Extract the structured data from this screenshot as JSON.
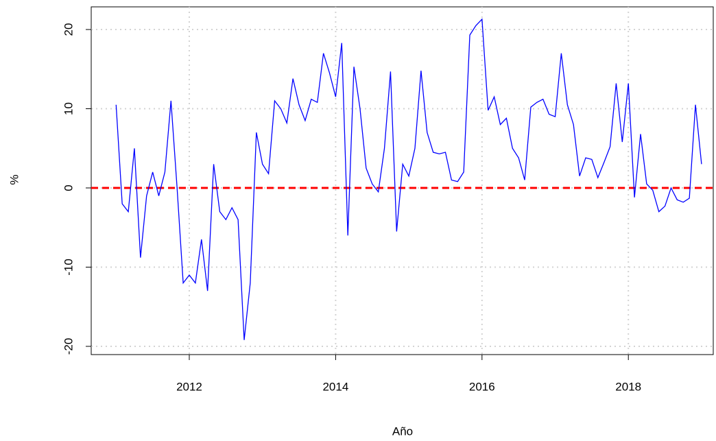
{
  "chart_data": {
    "type": "line",
    "xlabel": "Año",
    "ylabel": "%",
    "x": [
      2011,
      2011.0833,
      2011.1667,
      2011.25,
      2011.3333,
      2011.4167,
      2011.5,
      2011.5833,
      2011.6667,
      2011.75,
      2011.8333,
      2011.9167,
      2012,
      2012.0833,
      2012.1667,
      2012.25,
      2012.3333,
      2012.4167,
      2012.5,
      2012.5833,
      2012.6667,
      2012.75,
      2012.8333,
      2012.9167,
      2013,
      2013.0833,
      2013.1667,
      2013.25,
      2013.3333,
      2013.4167,
      2013.5,
      2013.5833,
      2013.6667,
      2013.75,
      2013.8333,
      2013.9167,
      2014,
      2014.0833,
      2014.1667,
      2014.25,
      2014.3333,
      2014.4167,
      2014.5,
      2014.5833,
      2014.6667,
      2014.75,
      2014.8333,
      2014.9167,
      2015,
      2015.0833,
      2015.1667,
      2015.25,
      2015.3333,
      2015.4167,
      2015.5,
      2015.5833,
      2015.6667,
      2015.75,
      2015.8333,
      2015.9167,
      2016,
      2016.0833,
      2016.1667,
      2016.25,
      2016.3333,
      2016.4167,
      2016.5,
      2016.5833,
      2016.6667,
      2016.75,
      2016.8333,
      2016.9167,
      2017,
      2017.0833,
      2017.1667,
      2017.25,
      2017.3333,
      2017.4167,
      2017.5,
      2017.5833,
      2017.6667,
      2017.75,
      2017.8333,
      2017.9167,
      2018,
      2018.0833,
      2018.1667,
      2018.25,
      2018.3333,
      2018.4167,
      2018.5,
      2018.5833,
      2018.6667,
      2018.75,
      2018.8333,
      2018.9167,
      2019
    ],
    "series": [
      {
        "color": "#0000ff",
        "values": [
          10.5,
          -2,
          -3,
          5,
          -8.8,
          -1,
          2,
          -1,
          2,
          11,
          0,
          -12,
          -11,
          -12,
          -6.5,
          -13,
          3,
          -3,
          -4,
          -2.5,
          -4,
          -19.2,
          -12,
          7,
          3,
          1.8,
          11,
          10,
          8.2,
          13.8,
          10.5,
          8.5,
          11.2,
          10.8,
          17,
          14.5,
          11.5,
          18.3,
          -6,
          15.3,
          10,
          2.5,
          0.5,
          -0.5,
          5,
          14.7,
          -5.5,
          3,
          1.5,
          5,
          14.8,
          7,
          4.5,
          4.3,
          4.5,
          1,
          0.8,
          2,
          19.3,
          20.5,
          21.3,
          9.8,
          11.5,
          8,
          8.8,
          5,
          3.8,
          1,
          10.2,
          10.8,
          11.2,
          9.3,
          9,
          17,
          10.5,
          8,
          1.5,
          3.8,
          3.6,
          1.3,
          3.2,
          5.2,
          13.2,
          5.8,
          13.2,
          -1.2,
          6.8,
          0.5,
          -0.3,
          -3,
          -2.3,
          0,
          -1.5,
          -1.8,
          -1.3,
          10.5,
          3
        ]
      }
    ],
    "hline": 0,
    "hline_color": "#ff0000",
    "xlim": [
      2010.66,
      2019.16
    ],
    "xticks": [
      2012,
      2014,
      2016,
      2018
    ],
    "ylim": [
      -21.04,
      22.86
    ],
    "yticks": [
      -20,
      -10,
      0,
      10,
      20
    ],
    "grid": true
  }
}
